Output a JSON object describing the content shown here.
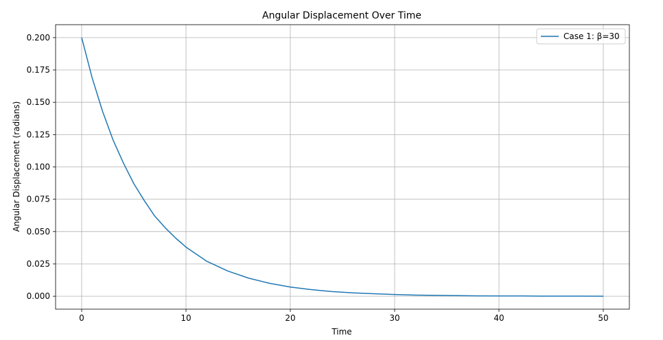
{
  "chart_data": {
    "type": "line",
    "title": "Angular Displacement Over Time",
    "xlabel": "Time",
    "ylabel": "Angular Displacement (radians)",
    "xlim": [
      -2.5,
      52.5
    ],
    "ylim": [
      -0.01,
      0.21
    ],
    "xticks": [
      0,
      10,
      20,
      30,
      40,
      50
    ],
    "yticks": [
      0.0,
      0.025,
      0.05,
      0.075,
      0.1,
      0.125,
      0.15,
      0.175,
      0.2
    ],
    "ytick_labels": [
      "0.000",
      "0.025",
      "0.050",
      "0.075",
      "0.100",
      "0.125",
      "0.150",
      "0.175",
      "0.200"
    ],
    "grid": true,
    "legend_position": "top-right",
    "series": [
      {
        "name": "Case 1: β=30",
        "color": "#1f77b4",
        "x": [
          0,
          1,
          2,
          3,
          4,
          5,
          6,
          7,
          8,
          9,
          10,
          12,
          14,
          16,
          18,
          20,
          22,
          24,
          26,
          28,
          30,
          32,
          34,
          36,
          38,
          40,
          42,
          44,
          46,
          48,
          50
        ],
        "y": [
          0.2,
          0.169,
          0.143,
          0.121,
          0.103,
          0.087,
          0.074,
          0.062,
          0.053,
          0.045,
          0.038,
          0.027,
          0.0195,
          0.014,
          0.01,
          0.0071,
          0.0051,
          0.0036,
          0.0026,
          0.0019,
          0.0013,
          0.0009,
          0.0007,
          0.0005,
          0.0003,
          0.0002,
          0.0002,
          0.0001,
          0.0001,
          0.0001,
          0.0
        ]
      }
    ]
  }
}
